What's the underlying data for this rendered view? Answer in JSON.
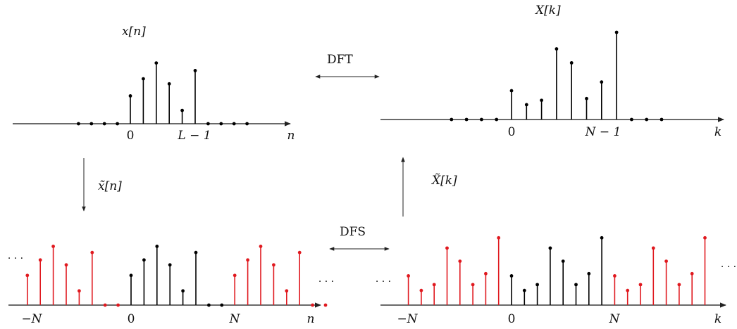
{
  "labels": {
    "x_n": "x[n]",
    "X_k": "X[k]",
    "xt_n": "x̃[n]",
    "Xt_k": "X̃[k]",
    "dft": "DFT",
    "dfs": "DFS",
    "zero": "0",
    "L_minus_1": "L − 1",
    "N_minus_1": "N − 1",
    "N": "N",
    "minus_N": "−N",
    "n": "n",
    "k": "k",
    "dots": "· · ·"
  },
  "colors": {
    "base": "#000000",
    "periodic_copy": "#e0191f"
  },
  "chart_data": [
    {
      "type": "stem",
      "panel": "x[n]",
      "axis_label": "n",
      "sample_index": [
        -4,
        -3,
        -2,
        -1,
        0,
        1,
        2,
        3,
        4,
        5,
        6,
        7,
        8,
        9
      ],
      "values": [
        0,
        0,
        0,
        0,
        0.44,
        0.71,
        0.96,
        0.63,
        0.21,
        0.84,
        0,
        0,
        0,
        0
      ]
    },
    {
      "type": "stem",
      "panel": "X[k]",
      "axis_label": "k",
      "sample_index": [
        -4,
        -3,
        -2,
        -1,
        0,
        1,
        2,
        3,
        4,
        5,
        6,
        7,
        8,
        9,
        10
      ],
      "values": [
        0,
        0,
        0,
        0,
        0.33,
        0.17,
        0.22,
        0.81,
        0.65,
        0.24,
        0.43,
        1.0,
        0,
        0,
        0
      ]
    },
    {
      "type": "stem",
      "panel": "x̃[n]",
      "axis_label": "n",
      "period_index": [
        0,
        1,
        2,
        3,
        4,
        5,
        6,
        7
      ],
      "values": [
        0.48,
        0.73,
        0.95,
        0.65,
        0.23,
        0.85,
        0,
        0
      ],
      "periods_shown": [
        -1,
        0,
        1
      ]
    },
    {
      "type": "stem",
      "panel": "X̃[k]",
      "axis_label": "k",
      "period_index": [
        0,
        1,
        2,
        3,
        4,
        5,
        6,
        7
      ],
      "values": [
        0.4,
        0.2,
        0.28,
        0.78,
        0.6,
        0.28,
        0.43,
        0.92
      ],
      "periods_shown": [
        -1,
        0,
        1
      ]
    }
  ]
}
